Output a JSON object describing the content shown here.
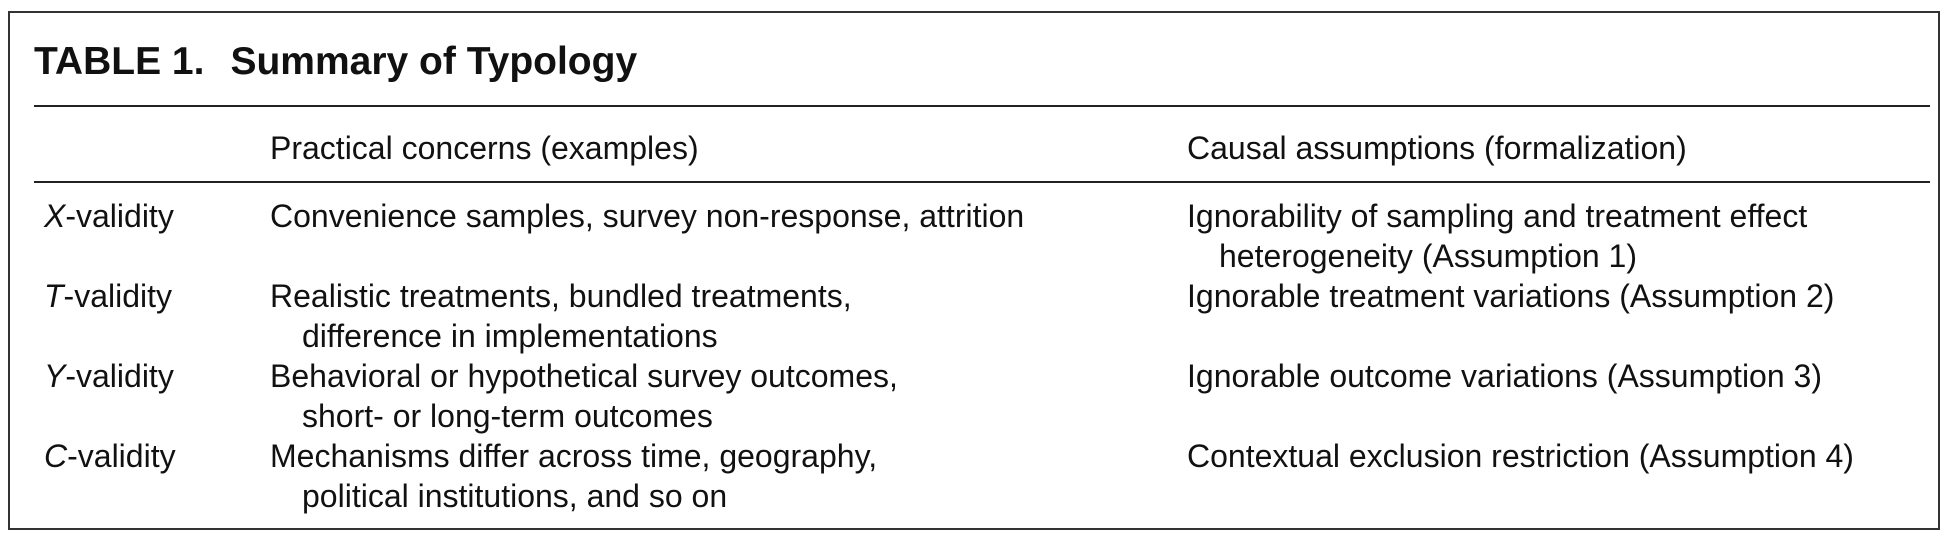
{
  "table": {
    "title_number": "TABLE 1.",
    "title_text": "Summary of Typology",
    "headers": {
      "col1": "",
      "col2": "Practical concerns (examples)",
      "col3": "Causal assumptions (formalization)"
    },
    "rows": [
      {
        "name_letter": "X",
        "name_suffix": "-validity",
        "concerns_line1": "Convenience samples, survey non-response, attrition",
        "concerns_line2": "",
        "assumption_line1": "Ignorability of sampling and treatment effect",
        "assumption_line2": "heterogeneity (Assumption 1)"
      },
      {
        "name_letter": "T",
        "name_suffix": "-validity",
        "concerns_line1": "Realistic treatments, bundled treatments,",
        "concerns_line2": "difference in implementations",
        "assumption_line1": "Ignorable treatment variations (Assumption 2)",
        "assumption_line2": ""
      },
      {
        "name_letter": "Y",
        "name_suffix": "-validity",
        "concerns_line1": "Behavioral or hypothetical survey outcomes,",
        "concerns_line2": "short- or long-term outcomes",
        "assumption_line1": "Ignorable outcome variations (Assumption 3)",
        "assumption_line2": ""
      },
      {
        "name_letter": "C",
        "name_suffix": "-validity",
        "concerns_line1": "Mechanisms differ across time, geography,",
        "concerns_line2": "political institutions, and so on",
        "assumption_line1": "Contextual exclusion restriction (Assumption 4)",
        "assumption_line2": ""
      }
    ]
  }
}
